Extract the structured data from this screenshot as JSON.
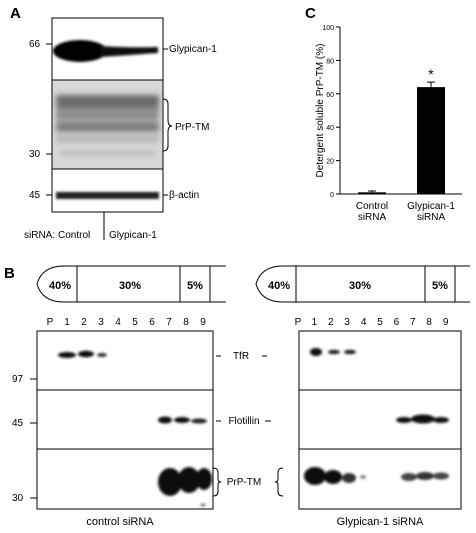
{
  "panel_a": {
    "letter": "A",
    "mw_top": "66",
    "mw_mid": "30",
    "mw_bot": "45",
    "label_glypican": "Glypican-1",
    "label_prp": "PrP-TM",
    "label_actin": "β-actin",
    "sirna_prefix": "siRNA:",
    "lane_control": "Control",
    "lane_glypican": "Glypican-1"
  },
  "panel_b": {
    "letter": "B",
    "gradient": [
      "40%",
      "30%",
      "5%"
    ],
    "lanes": [
      "P",
      "1",
      "2",
      "3",
      "4",
      "5",
      "6",
      "7",
      "8",
      "9"
    ],
    "mw": [
      "97",
      "45",
      "30"
    ],
    "labels": [
      "TfR",
      "Flotillin",
      "PrP-TM"
    ],
    "caption_left": "control siRNA",
    "caption_right": "Glypican-1 siRNA"
  },
  "panel_c": {
    "letter": "C",
    "star": "*"
  },
  "chart_data": {
    "type": "bar",
    "categories": [
      "Control siRNA",
      "Glypican-1 siRNA"
    ],
    "category_lines": [
      [
        "Control",
        "siRNA"
      ],
      [
        "Glypican-1",
        "siRNA"
      ]
    ],
    "values": [
      1,
      64
    ],
    "errors": [
      0.8,
      3
    ],
    "ylabel": "Detergent soluble PrP-TM (%)",
    "ylim": [
      0,
      100
    ],
    "yticks": [
      "0",
      "20",
      "40",
      "60",
      "80",
      "100"
    ],
    "bar_colors": [
      "#000000",
      "#000000"
    ],
    "grid": false
  }
}
